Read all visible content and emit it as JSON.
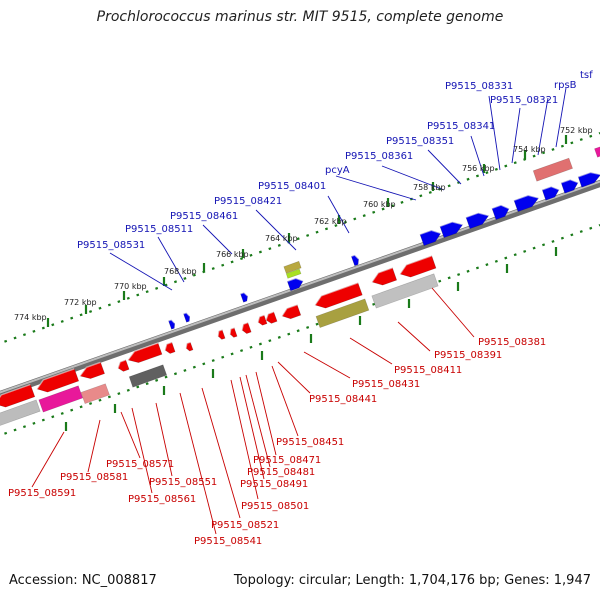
{
  "title": "Prochlorococcus marinus str. MIT 9515, complete genome",
  "accession_text": "Accession: NC_008817",
  "topology_text": "Topology: circular; Length: 1,704,176 bp; Genes: 1,947",
  "colors": {
    "forward_label": "#1414b4",
    "reverse_label": "#c80000",
    "forward_gene": "#0000ee",
    "reverse_gene": "#ee0000",
    "backbone": "#888888",
    "tick": "#1a7a1a"
  },
  "scale_labels": [
    "752 kbp",
    "754 kbp",
    "756 kbp",
    "758 kbp",
    "760 kbp",
    "762 kbp",
    "764 kbp",
    "766 kbp",
    "768 kbp",
    "770 kbp",
    "772 kbp",
    "774 kbp"
  ],
  "forward_labels": [
    "tsf",
    "rpsB",
    "P9515_08321",
    "P9515_08331",
    "P9515_08341",
    "P9515_08351",
    "P9515_08361",
    "pcyA",
    "P9515_08401",
    "P9515_08421",
    "P9515_08461",
    "P9515_08511",
    "P9515_08531"
  ],
  "reverse_labels": [
    "P9515_08381",
    "P9515_08391",
    "P9515_08411",
    "P9515_08431",
    "P9515_08441",
    "P9515_08451",
    "P9515_08471",
    "P9515_08481",
    "P9515_08491",
    "P9515_08501",
    "P9515_08521",
    "P9515_08541",
    "P9515_08551",
    "P9515_08561",
    "P9515_08571",
    "P9515_08581",
    "P9515_08591"
  ]
}
